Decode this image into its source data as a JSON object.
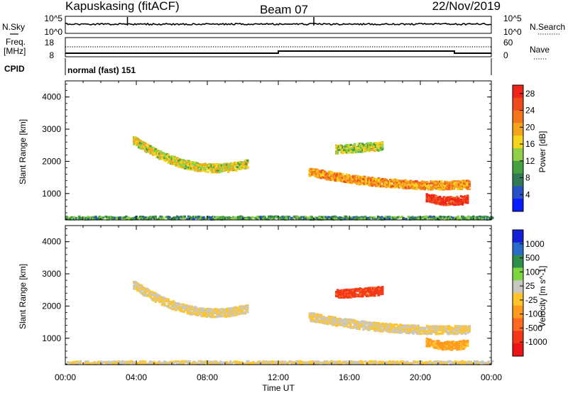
{
  "header": {
    "station": "Kapuskasing (fitACF)",
    "beam": "Beam 07",
    "date": "22/Nov/2019"
  },
  "noise_panel": {
    "left_label": "N.Sky",
    "right_label": "N.Search",
    "left_ticks": [
      "10^5",
      "10^0"
    ],
    "right_ticks": [
      "10^5",
      "10^0"
    ]
  },
  "freq_panel": {
    "left_label_line1": "Freq.",
    "left_label_line2": "[MHz]",
    "left_ticks": [
      "18",
      "8"
    ],
    "right_label": "Nave",
    "right_ticks": [
      "60",
      "0"
    ]
  },
  "cpid": {
    "label": "CPID",
    "mode": "normal (fast) 151"
  },
  "colors": {
    "power": [
      "#0a1cff",
      "#2a52c8",
      "#2f7a55",
      "#45a040",
      "#8fd048",
      "#f5d41f",
      "#f5a41e",
      "#f4761c",
      "#ef4a1c",
      "#f02418"
    ],
    "velocity": [
      "#1420d8",
      "#2a6ac8",
      "#2d8f4a",
      "#7cd640",
      "#c8c8c0",
      "#ffc52a",
      "#ff9a20",
      "#ff6a20",
      "#f23818",
      "#ee1418"
    ]
  },
  "chart_data": [
    {
      "type": "heatmap",
      "title": "",
      "xlabel": "Time UT",
      "ylabel": "Slant Range [km]",
      "xlim_hours": [
        0,
        24
      ],
      "ylim_km": [
        180,
        4500
      ],
      "x_tick_labels": [
        "00:00",
        "04:00",
        "08:00",
        "12:00",
        "16:00",
        "20:00",
        "00:00"
      ],
      "y_tick_labels": [
        "1000",
        "2000",
        "3000",
        "4000"
      ],
      "colorbar": {
        "label": "Power [dB]",
        "ticks": [
          "4",
          "8",
          "12",
          "16",
          "20",
          "24",
          "28"
        ],
        "range": [
          0,
          30
        ]
      },
      "echo_bands": [
        {
          "t_start": 3.8,
          "t_end": 10.2,
          "range_start_km": 2700,
          "range_mid_km": 1900,
          "range_end_km": 1950,
          "power_db": 16
        },
        {
          "t_start": 13.7,
          "t_end": 22.7,
          "range_start_km": 1700,
          "range_mid_km": 1350,
          "range_end_km": 1300,
          "power_db": 20
        },
        {
          "t_start": 15.2,
          "t_end": 17.8,
          "range_start_km": 2400,
          "range_mid_km": 2450,
          "range_end_km": 2500,
          "power_db": 14
        },
        {
          "t_start": 20.3,
          "t_end": 22.6,
          "range_start_km": 900,
          "range_mid_km": 800,
          "range_end_km": 850,
          "power_db": 28
        },
        {
          "t_start": 0.0,
          "t_end": 24.0,
          "range_start_km": 250,
          "range_mid_km": 250,
          "range_end_km": 250,
          "power_db": 10
        }
      ]
    },
    {
      "type": "heatmap",
      "title": "",
      "xlabel": "Time UT",
      "ylabel": "Slant Range [km]",
      "xlim_hours": [
        0,
        24
      ],
      "ylim_km": [
        180,
        4500
      ],
      "x_tick_labels": [
        "00:00",
        "04:00",
        "08:00",
        "12:00",
        "16:00",
        "20:00",
        "00:00"
      ],
      "y_tick_labels": [
        "1000",
        "2000",
        "3000",
        "4000"
      ],
      "colorbar": {
        "label": "Velocity [m s^-1]",
        "ticks": [
          "1000",
          "500",
          "100",
          "25",
          "-25",
          "-100",
          "-500",
          "-1000"
        ],
        "range": [
          -1200,
          1200
        ]
      },
      "echo_bands": [
        {
          "t_start": 3.8,
          "t_end": 10.2,
          "range_start_km": 2700,
          "range_mid_km": 1900,
          "range_end_km": 1950,
          "velocity": 0
        },
        {
          "t_start": 13.7,
          "t_end": 22.7,
          "range_start_km": 1700,
          "range_mid_km": 1350,
          "range_end_km": 1300,
          "velocity": 0
        },
        {
          "t_start": 15.2,
          "t_end": 17.8,
          "range_start_km": 2400,
          "range_mid_km": 2450,
          "range_end_km": 2500,
          "velocity": -800
        },
        {
          "t_start": 20.3,
          "t_end": 22.6,
          "range_start_km": 900,
          "range_mid_km": 800,
          "range_end_km": 850,
          "velocity": -300
        },
        {
          "t_start": 0.0,
          "t_end": 24.0,
          "range_start_km": 250,
          "range_mid_km": 250,
          "range_end_km": 250,
          "velocity": 0
        }
      ]
    }
  ]
}
